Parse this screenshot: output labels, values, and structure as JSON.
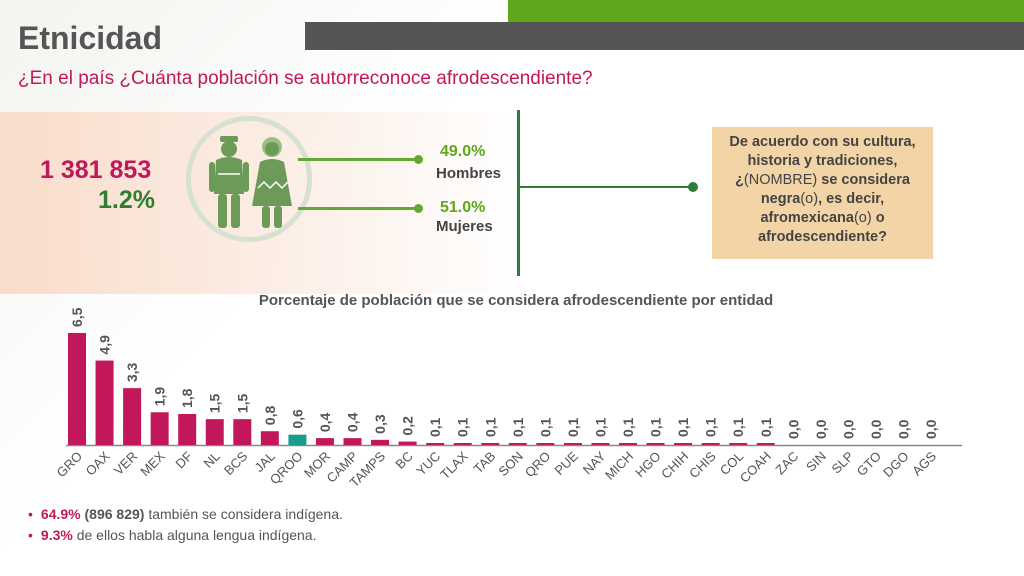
{
  "header": {
    "title": "Etnicidad",
    "subtitle": "¿En el país ¿Cuánta población se autorreconoce afrodescendiente?"
  },
  "summary": {
    "total": "1 381 853",
    "percent": "1.2%",
    "men_pct": "49.0%",
    "men_label": "Hombres",
    "women_pct": "51.0%",
    "women_label": "Mujeres",
    "icon": "man-woman-traditional-icon"
  },
  "question": {
    "part1": "De acuerdo con su cultura, historia y tradiciones, ¿",
    "part2": "(NOMBRE)",
    "part3": " se considera negra",
    "part4": "(o)",
    "part5": ", es decir, afromexicana",
    "part6": "(o)",
    "part7": " o afrodescendiente?"
  },
  "chart_data": {
    "type": "bar",
    "title": "Porcentaje de población que se considera afrodescendiente por entidad",
    "categories": [
      "GRO",
      "OAX",
      "VER",
      "MEX",
      "DF",
      "NL",
      "BCS",
      "JAL",
      "QROO",
      "MOR",
      "CAMP",
      "TAMPS",
      "BC",
      "YUC",
      "TLAX",
      "TAB",
      "SON",
      "QRO",
      "PUE",
      "NAY",
      "MICH",
      "HGO",
      "CHIH",
      "CHIS",
      "COL",
      "COAH",
      "ZAC",
      "SIN",
      "SLP",
      "GTO",
      "DGO",
      "AGS"
    ],
    "values": [
      6.5,
      4.9,
      3.3,
      1.9,
      1.8,
      1.5,
      1.5,
      0.8,
      0.6,
      0.4,
      0.4,
      0.3,
      0.2,
      0.1,
      0.1,
      0.1,
      0.1,
      0.1,
      0.1,
      0.1,
      0.1,
      0.1,
      0.1,
      0.1,
      0.1,
      0.1,
      0.0,
      0.0,
      0.0,
      0.0,
      0.0,
      0.0
    ],
    "value_labels": [
      "6,5",
      "4,9",
      "3,3",
      "1,9",
      "1,8",
      "1,5",
      "1,5",
      "0,8",
      "0,6",
      "0,4",
      "0,4",
      "0,3",
      "0,2",
      "0,1",
      "0,1",
      "0,1",
      "0,1",
      "0,1",
      "0,1",
      "0,1",
      "0,1",
      "0,1",
      "0,1",
      "0,1",
      "0,1",
      "0,1",
      "0,0",
      "0,0",
      "0,0",
      "0,0",
      "0,0",
      "0,0"
    ],
    "highlight_category": "QROO",
    "ylim": [
      0,
      6.5
    ],
    "colors": {
      "bar": "#c2185b",
      "highlight": "#1a9c8c",
      "axis": "#888888"
    }
  },
  "notes": {
    "line1_pct": "64.9%",
    "line1_count": "(896 829)",
    "line1_text": " también se considera indígena.",
    "line2_pct": "9.3%",
    "line2_text": " de ellos habla alguna lengua indígena."
  }
}
